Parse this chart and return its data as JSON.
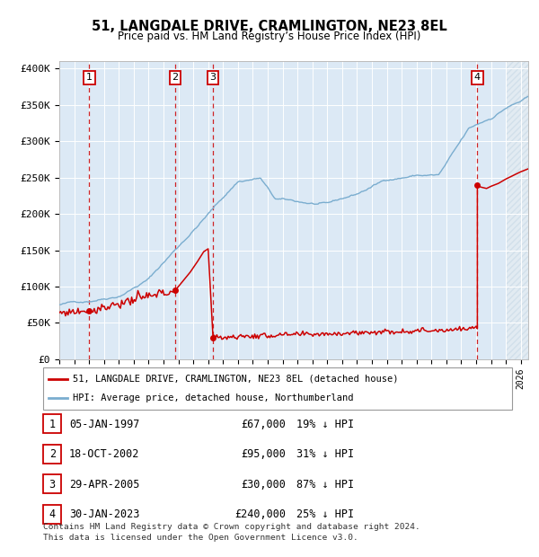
{
  "title": "51, LANGDALE DRIVE, CRAMLINGTON, NE23 8EL",
  "subtitle": "Price paid vs. HM Land Registry’s House Price Index (HPI)",
  "transactions": [
    {
      "num": 1,
      "date_str": "05-JAN-1997",
      "date_x": 1997.014,
      "price": 67000,
      "pct": "19%"
    },
    {
      "num": 2,
      "date_str": "18-OCT-2002",
      "date_x": 2002.794,
      "price": 95000,
      "pct": "31%"
    },
    {
      "num": 3,
      "date_str": "29-APR-2005",
      "date_x": 2005.326,
      "price": 30000,
      "pct": "87%"
    },
    {
      "num": 4,
      "date_str": "30-JAN-2023",
      "date_x": 2023.082,
      "price": 240000,
      "pct": "25%"
    }
  ],
  "legend_line1": "51, LANGDALE DRIVE, CRAMLINGTON, NE23 8EL (detached house)",
  "legend_line2": "HPI: Average price, detached house, Northumberland",
  "footnote1": "Contains HM Land Registry data © Crown copyright and database right 2024.",
  "footnote2": "This data is licensed under the Open Government Licence v3.0.",
  "ylabel_ticks": [
    "£0",
    "£50K",
    "£100K",
    "£150K",
    "£200K",
    "£250K",
    "£300K",
    "£350K",
    "£400K"
  ],
  "ytick_vals": [
    0,
    50000,
    100000,
    150000,
    200000,
    250000,
    300000,
    350000,
    400000
  ],
  "xlim": [
    1995.0,
    2026.5
  ],
  "ylim": [
    0,
    410000
  ],
  "bg_color": "#dce9f5",
  "hatch_color": "#b8cfe0",
  "red_color": "#cc0000",
  "blue_color": "#7aadcf"
}
